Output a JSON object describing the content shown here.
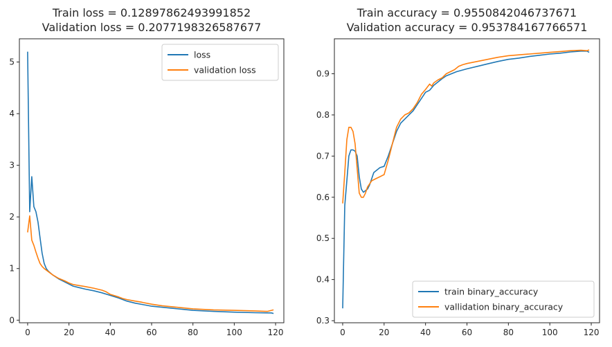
{
  "chart_data": [
    {
      "type": "line",
      "title": [
        "Train loss = 0.12897862493991852",
        "Validation loss = 0.2077198326587677"
      ],
      "xlabel": "",
      "ylabel": "",
      "xlim": [
        -4,
        124
      ],
      "ylim": [
        -0.05,
        5.45
      ],
      "xticks": [
        0,
        20,
        40,
        60,
        80,
        100,
        120
      ],
      "yticks": [
        0,
        1,
        2,
        3,
        4,
        5
      ],
      "legend_position": "top-right",
      "series": [
        {
          "name": "loss",
          "color": "#1f77b4",
          "points": [
            [
              0,
              5.2
            ],
            [
              1,
              2.1
            ],
            [
              2,
              2.78
            ],
            [
              3,
              2.2
            ],
            [
              4,
              2.1
            ],
            [
              5,
              1.9
            ],
            [
              6,
              1.6
            ],
            [
              7,
              1.3
            ],
            [
              8,
              1.1
            ],
            [
              9,
              1.0
            ],
            [
              10,
              0.95
            ],
            [
              12,
              0.88
            ],
            [
              15,
              0.8
            ],
            [
              18,
              0.74
            ],
            [
              20,
              0.7
            ],
            [
              22,
              0.66
            ],
            [
              25,
              0.63
            ],
            [
              28,
              0.6
            ],
            [
              32,
              0.57
            ],
            [
              36,
              0.53
            ],
            [
              40,
              0.48
            ],
            [
              44,
              0.43
            ],
            [
              48,
              0.37
            ],
            [
              52,
              0.33
            ],
            [
              56,
              0.3
            ],
            [
              60,
              0.27
            ],
            [
              65,
              0.25
            ],
            [
              70,
              0.23
            ],
            [
              75,
              0.21
            ],
            [
              80,
              0.19
            ],
            [
              90,
              0.17
            ],
            [
              100,
              0.155
            ],
            [
              110,
              0.145
            ],
            [
              118,
              0.14
            ],
            [
              119,
              0.13
            ]
          ]
        },
        {
          "name": "validation loss",
          "color": "#ff7f0e",
          "points": [
            [
              0,
              1.7
            ],
            [
              1,
              2.02
            ],
            [
              2,
              1.55
            ],
            [
              3,
              1.45
            ],
            [
              4,
              1.32
            ],
            [
              5,
              1.2
            ],
            [
              6,
              1.1
            ],
            [
              7,
              1.04
            ],
            [
              8,
              1.0
            ],
            [
              10,
              0.94
            ],
            [
              12,
              0.88
            ],
            [
              15,
              0.81
            ],
            [
              18,
              0.76
            ],
            [
              20,
              0.72
            ],
            [
              22,
              0.69
            ],
            [
              25,
              0.67
            ],
            [
              28,
              0.65
            ],
            [
              32,
              0.62
            ],
            [
              36,
              0.58
            ],
            [
              38,
              0.55
            ],
            [
              40,
              0.5
            ],
            [
              44,
              0.45
            ],
            [
              46,
              0.42
            ],
            [
              48,
              0.4
            ],
            [
              52,
              0.37
            ],
            [
              55,
              0.35
            ],
            [
              56,
              0.34
            ],
            [
              60,
              0.31
            ],
            [
              65,
              0.28
            ],
            [
              70,
              0.26
            ],
            [
              75,
              0.24
            ],
            [
              80,
              0.22
            ],
            [
              90,
              0.2
            ],
            [
              100,
              0.19
            ],
            [
              110,
              0.18
            ],
            [
              116,
              0.17
            ],
            [
              118,
              0.19
            ],
            [
              119,
              0.2
            ]
          ]
        }
      ]
    },
    {
      "type": "line",
      "title": [
        "Train accuracy = 0.9550842046737671",
        "Validation accuracy = 0.953784167766571"
      ],
      "xlabel": "",
      "ylabel": "",
      "xlim": [
        -4,
        124
      ],
      "ylim": [
        0.295,
        0.985
      ],
      "xticks": [
        0,
        20,
        40,
        60,
        80,
        100,
        120
      ],
      "yticks": [
        0.3,
        0.4,
        0.5,
        0.6,
        0.7,
        0.8,
        0.9
      ],
      "legend_position": "bottom-right",
      "series": [
        {
          "name": "train binary_accuracy",
          "color": "#1f77b4",
          "points": [
            [
              0,
              0.33
            ],
            [
              1,
              0.58
            ],
            [
              2,
              0.64
            ],
            [
              3,
              0.7
            ],
            [
              4,
              0.715
            ],
            [
              5,
              0.715
            ],
            [
              6,
              0.712
            ],
            [
              7,
              0.7
            ],
            [
              8,
              0.65
            ],
            [
              9,
              0.62
            ],
            [
              10,
              0.612
            ],
            [
              12,
              0.62
            ],
            [
              13,
              0.63
            ],
            [
              15,
              0.66
            ],
            [
              18,
              0.672
            ],
            [
              20,
              0.675
            ],
            [
              22,
              0.7
            ],
            [
              24,
              0.73
            ],
            [
              26,
              0.76
            ],
            [
              28,
              0.78
            ],
            [
              30,
              0.79
            ],
            [
              32,
              0.8
            ],
            [
              34,
              0.81
            ],
            [
              36,
              0.825
            ],
            [
              38,
              0.84
            ],
            [
              40,
              0.855
            ],
            [
              42,
              0.86
            ],
            [
              44,
              0.872
            ],
            [
              46,
              0.88
            ],
            [
              48,
              0.888
            ],
            [
              50,
              0.895
            ],
            [
              55,
              0.905
            ],
            [
              60,
              0.912
            ],
            [
              65,
              0.918
            ],
            [
              70,
              0.924
            ],
            [
              75,
              0.93
            ],
            [
              80,
              0.935
            ],
            [
              85,
              0.938
            ],
            [
              90,
              0.942
            ],
            [
              95,
              0.945
            ],
            [
              100,
              0.948
            ],
            [
              105,
              0.95
            ],
            [
              110,
              0.953
            ],
            [
              115,
              0.955
            ],
            [
              118,
              0.955
            ],
            [
              119,
              0.952
            ]
          ]
        },
        {
          "name": "vallidation binary_accuracy",
          "color": "#ff7f0e",
          "points": [
            [
              0,
              0.585
            ],
            [
              1,
              0.66
            ],
            [
              2,
              0.74
            ],
            [
              3,
              0.77
            ],
            [
              4,
              0.77
            ],
            [
              5,
              0.76
            ],
            [
              6,
              0.73
            ],
            [
              7,
              0.67
            ],
            [
              8,
              0.61
            ],
            [
              9,
              0.6
            ],
            [
              10,
              0.6
            ],
            [
              11,
              0.61
            ],
            [
              12,
              0.625
            ],
            [
              14,
              0.64
            ],
            [
              16,
              0.645
            ],
            [
              18,
              0.65
            ],
            [
              20,
              0.655
            ],
            [
              22,
              0.69
            ],
            [
              24,
              0.73
            ],
            [
              26,
              0.77
            ],
            [
              28,
              0.79
            ],
            [
              30,
              0.8
            ],
            [
              32,
              0.805
            ],
            [
              34,
              0.815
            ],
            [
              36,
              0.83
            ],
            [
              38,
              0.85
            ],
            [
              40,
              0.862
            ],
            [
              42,
              0.875
            ],
            [
              43,
              0.87
            ],
            [
              44,
              0.878
            ],
            [
              46,
              0.885
            ],
            [
              48,
              0.89
            ],
            [
              50,
              0.9
            ],
            [
              52,
              0.905
            ],
            [
              54,
              0.91
            ],
            [
              56,
              0.918
            ],
            [
              58,
              0.922
            ],
            [
              60,
              0.925
            ],
            [
              65,
              0.93
            ],
            [
              70,
              0.935
            ],
            [
              75,
              0.94
            ],
            [
              80,
              0.944
            ],
            [
              85,
              0.946
            ],
            [
              90,
              0.948
            ],
            [
              95,
              0.95
            ],
            [
              100,
              0.952
            ],
            [
              105,
              0.954
            ],
            [
              110,
              0.956
            ],
            [
              115,
              0.957
            ],
            [
              118,
              0.956
            ],
            [
              119,
              0.958
            ]
          ]
        }
      ]
    }
  ]
}
